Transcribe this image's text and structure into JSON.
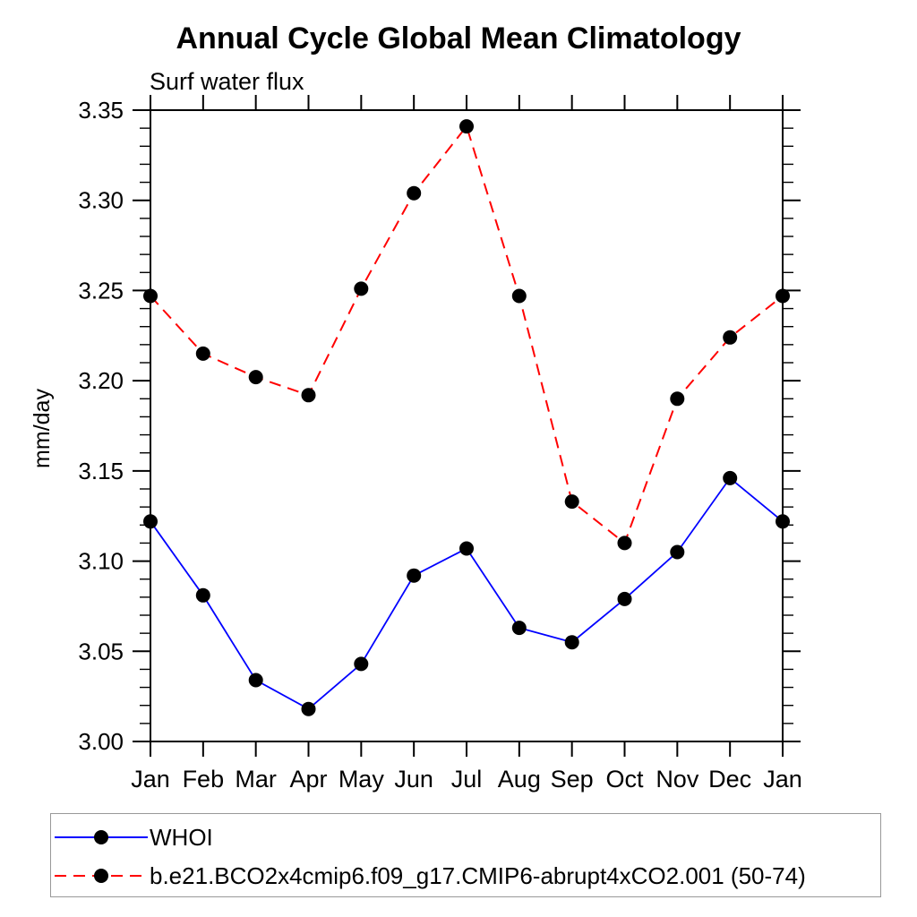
{
  "chart_data": {
    "type": "line",
    "title": "Annual Cycle Global Mean Climatology",
    "subtitle": "Surf water flux",
    "xlabel": "",
    "ylabel": "mm/day",
    "categories": [
      "Jan",
      "Feb",
      "Mar",
      "Apr",
      "May",
      "Jun",
      "Jul",
      "Aug",
      "Sep",
      "Oct",
      "Nov",
      "Dec",
      "Jan"
    ],
    "ylim": [
      3.0,
      3.35
    ],
    "ytick_major_interval": 0.05,
    "ytick_minor_interval": 0.01,
    "ytick_labels": [
      "3.00",
      "3.05",
      "3.10",
      "3.15",
      "3.20",
      "3.25",
      "3.30",
      "3.35"
    ],
    "grid": false,
    "legend_position": "bottom-left-box",
    "axis_color": "#000000",
    "marker_color": "#000000",
    "legend_border_color": "#999999",
    "series": [
      {
        "name": "WHOI",
        "color": "#0000ff",
        "line_style": "solid",
        "marker": "circle",
        "values": [
          3.122,
          3.081,
          3.034,
          3.018,
          3.043,
          3.092,
          3.107,
          3.063,
          3.055,
          3.079,
          3.105,
          3.146,
          3.122
        ]
      },
      {
        "name": "b.e21.BCO2x4cmip6.f09_g17.CMIP6-abrupt4xCO2.001 (50-74)",
        "color": "#ff0000",
        "line_style": "dashed",
        "marker": "circle",
        "values": [
          3.247,
          3.215,
          3.202,
          3.192,
          3.251,
          3.304,
          3.341,
          3.247,
          3.133,
          3.11,
          3.19,
          3.224,
          3.247
        ]
      }
    ]
  }
}
